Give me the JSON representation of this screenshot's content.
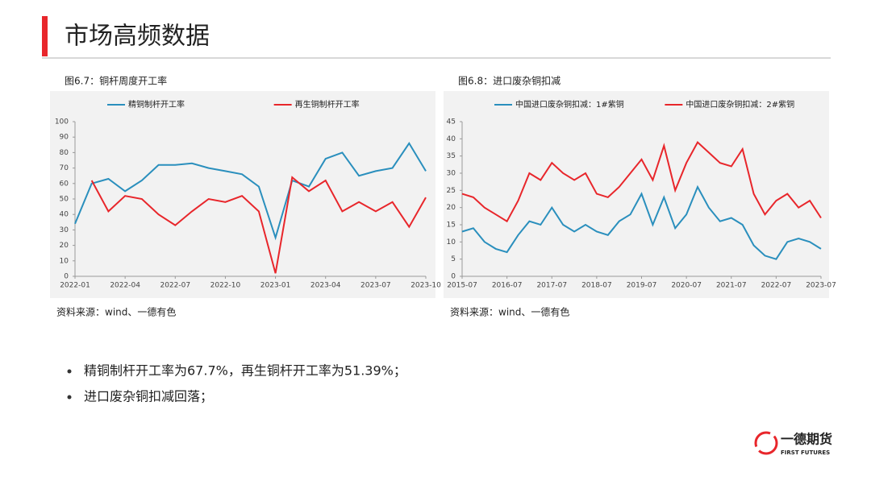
{
  "header": {
    "title": "市场高频数据"
  },
  "chart_data": [
    {
      "type": "line",
      "caption": "图6.7：铜杆周度开工率",
      "categories": [
        "2022-01",
        null,
        null,
        "2022-04",
        null,
        null,
        "2022-07",
        null,
        null,
        "2022-10",
        null,
        null,
        "2023-01",
        null,
        null,
        "2023-04",
        null,
        null,
        "2023-07",
        null,
        null,
        "2023-10"
      ],
      "series": [
        {
          "name": "精铜制杆开工率",
          "color": "#2a8fbd",
          "values": [
            34,
            60,
            63,
            55,
            62,
            72,
            72,
            73,
            70,
            68,
            66,
            58,
            25,
            62,
            58,
            76,
            80,
            65,
            68,
            70,
            86,
            68
          ]
        },
        {
          "name": "再生铜制杆开工率",
          "color": "#e8262b",
          "values": [
            null,
            62,
            42,
            52,
            50,
            40,
            33,
            42,
            50,
            48,
            52,
            42,
            2,
            64,
            55,
            62,
            42,
            48,
            42,
            48,
            32,
            51
          ]
        }
      ],
      "ylim": [
        0,
        100
      ],
      "yticks": [
        0,
        10,
        20,
        30,
        40,
        50,
        60,
        70,
        80,
        90,
        100
      ],
      "source": "资料来源：wind、一德有色"
    },
    {
      "type": "line",
      "caption": "图6.8：进口废杂铜扣减",
      "categories": [
        "2015-07",
        null,
        null,
        null,
        "2016-07",
        null,
        null,
        null,
        "2017-07",
        null,
        null,
        null,
        "2018-07",
        null,
        null,
        null,
        "2019-07",
        null,
        null,
        null,
        "2020-07",
        null,
        null,
        null,
        "2021-07",
        null,
        null,
        null,
        "2022-07",
        null,
        null,
        null,
        "2023-07"
      ],
      "series": [
        {
          "name": "中国进口废杂铜扣减：1#紫铜",
          "color": "#2a8fbd",
          "values": [
            13,
            14,
            10,
            8,
            7,
            12,
            16,
            15,
            20,
            15,
            13,
            15,
            13,
            12,
            16,
            18,
            24,
            15,
            23,
            14,
            18,
            26,
            20,
            16,
            17,
            15,
            9,
            6,
            5,
            10,
            11,
            10,
            8
          ]
        },
        {
          "name": "中国进口废杂铜扣减：2#紫铜",
          "color": "#e8262b",
          "values": [
            24,
            23,
            20,
            18,
            16,
            22,
            30,
            28,
            33,
            30,
            28,
            30,
            24,
            23,
            26,
            30,
            34,
            28,
            38,
            25,
            33,
            39,
            36,
            33,
            32,
            37,
            24,
            18,
            22,
            24,
            20,
            22,
            17
          ]
        }
      ],
      "ylim": [
        0,
        45
      ],
      "yticks": [
        0,
        5,
        10,
        15,
        20,
        25,
        30,
        35,
        40,
        45
      ],
      "source": "资料来源：wind、一德有色"
    }
  ],
  "bullets": [
    "精铜制杆开工率为67.7%，再生铜杆开工率为51.39%；",
    "进口废杂铜扣减回落；"
  ],
  "logo": {
    "name": "一德期货",
    "subtitle": "FIRST FUTURES"
  }
}
